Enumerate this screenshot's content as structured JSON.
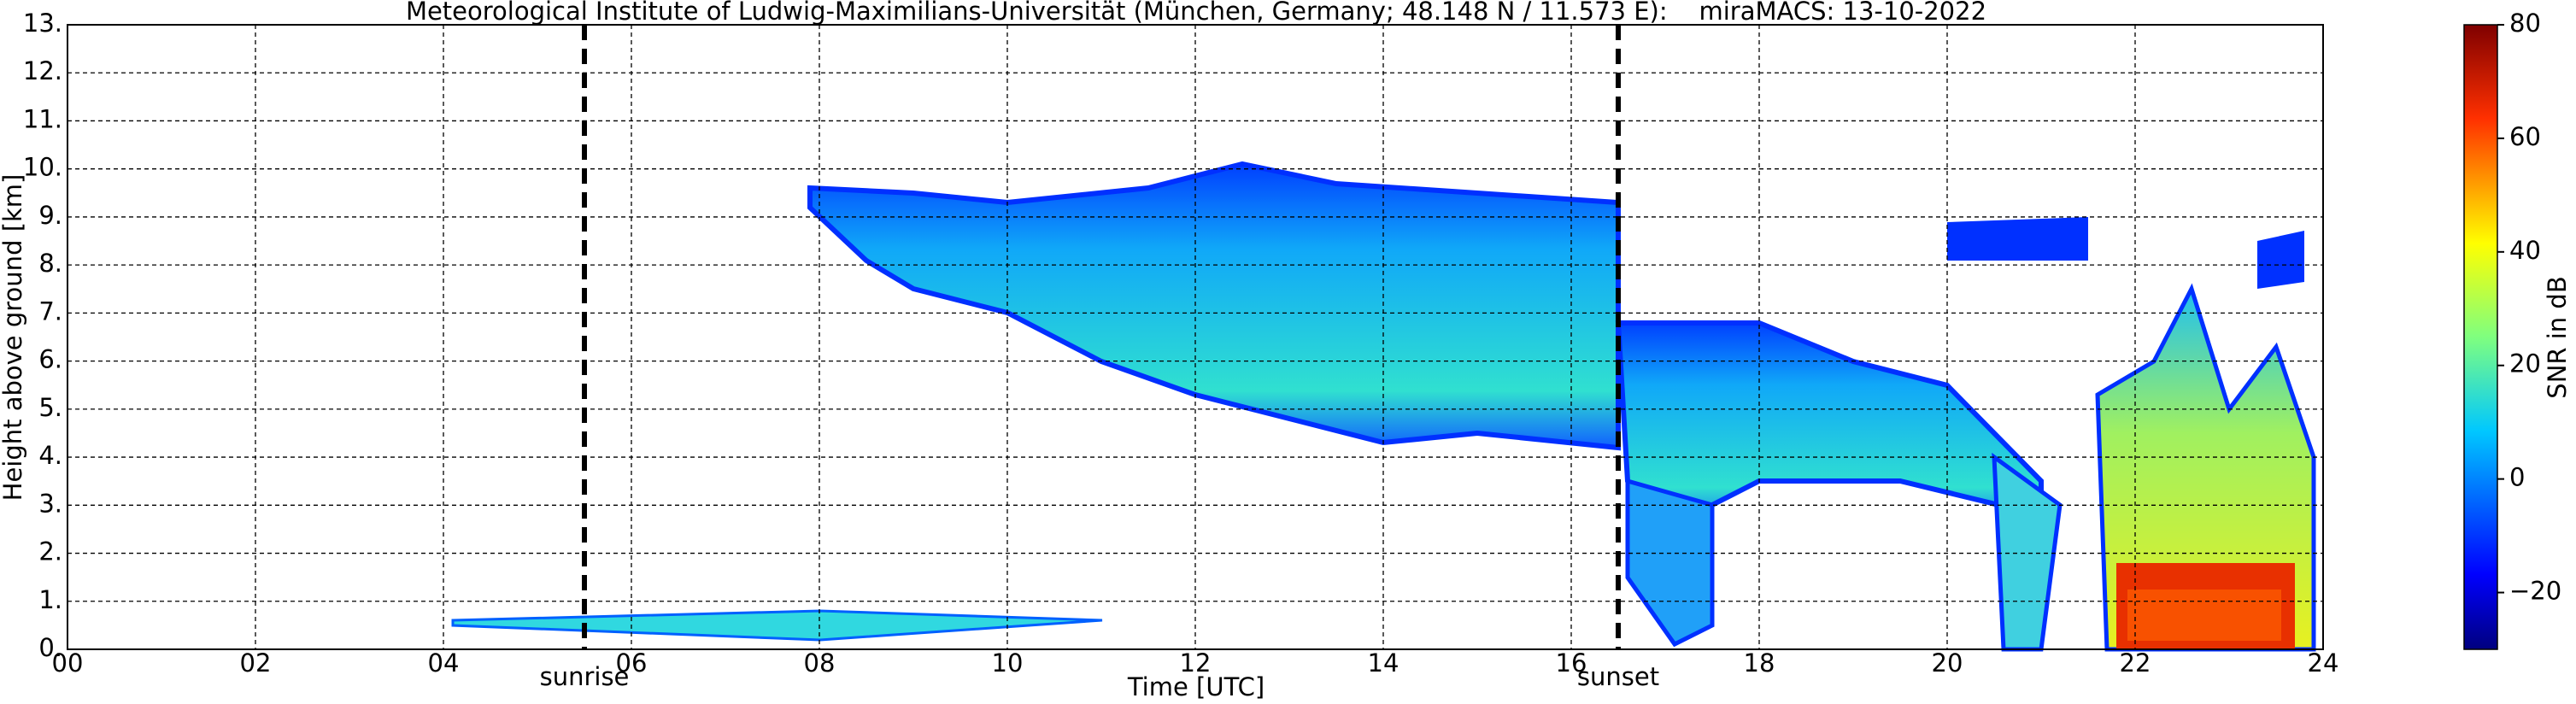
{
  "chart_data": {
    "type": "time-height",
    "title": "Meteorological Institute of Ludwig-Maximilians-Universität (München, Germany; 48.148 N / 11.573 E):    miraMACS: 13-10-2022",
    "x_label": "Time [UTC]",
    "y_label": "Height above ground [km]",
    "xlim": [
      0,
      24
    ],
    "xticks": [
      {
        "value": 0,
        "label": "00"
      },
      {
        "value": 2,
        "label": "02"
      },
      {
        "value": 4,
        "label": "04"
      },
      {
        "value": 6,
        "label": "06"
      },
      {
        "value": 8,
        "label": "08"
      },
      {
        "value": 10,
        "label": "10"
      },
      {
        "value": 12,
        "label": "12"
      },
      {
        "value": 14,
        "label": "14"
      },
      {
        "value": 16,
        "label": "16"
      },
      {
        "value": 18,
        "label": "18"
      },
      {
        "value": 20,
        "label": "20"
      },
      {
        "value": 22,
        "label": "22"
      },
      {
        "value": 24,
        "label": "24"
      }
    ],
    "ylim": [
      0,
      13
    ],
    "yticks": [
      {
        "value": 0,
        "label": "0."
      },
      {
        "value": 1,
        "label": "1."
      },
      {
        "value": 2,
        "label": "2."
      },
      {
        "value": 3,
        "label": "3."
      },
      {
        "value": 4,
        "label": "4."
      },
      {
        "value": 5,
        "label": "5."
      },
      {
        "value": 6,
        "label": "6."
      },
      {
        "value": 7,
        "label": "7."
      },
      {
        "value": 8,
        "label": "8."
      },
      {
        "value": 9,
        "label": "9."
      },
      {
        "value": 10,
        "label": "10."
      },
      {
        "value": 11,
        "label": "11."
      },
      {
        "value": 12,
        "label": "12."
      },
      {
        "value": 13,
        "label": "13."
      }
    ],
    "grid": true,
    "annotations": [
      {
        "text": "sunrise",
        "x": 5.5
      },
      {
        "text": "sunset",
        "x": 16.5
      }
    ],
    "colorbar": {
      "label": "SNR in dB",
      "lim": [
        -30,
        80
      ],
      "ticks": [
        {
          "value": -20,
          "label": "−20"
        },
        0,
        20,
        40,
        60,
        80
      ]
    }
  }
}
